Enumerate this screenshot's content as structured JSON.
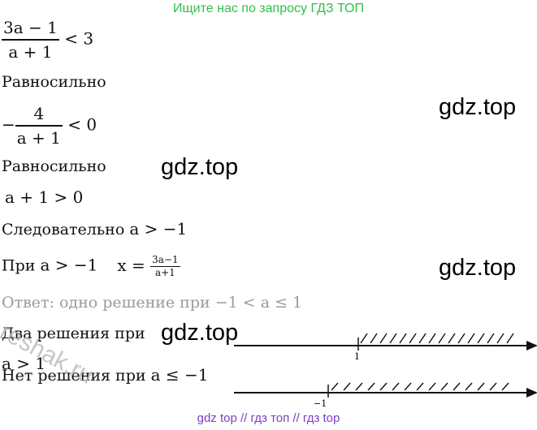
{
  "banner": "Ищите нас по запросу ГДЗ ТОП",
  "footer": "gdz top  //  гдз топ  //  гдз top",
  "watermark": "gdz.top",
  "side_watermark": "reshak.ru",
  "lines": {
    "l1_num": "3a − 1",
    "l1_den": "a + 1",
    "l1_rhs": " < 3",
    "equiv1": "Равносильно",
    "l2_minus": "−",
    "l2_num": "4",
    "l2_den": "a + 1",
    "l2_rhs": " < 0",
    "equiv2": "Равносильно",
    "l3": "a + 1 > 0",
    "l4_text": "Следовательно ",
    "l4_math": "a > −1",
    "l5_text": "При ",
    "l5_math": "a > −1",
    "l5_x": "x = ",
    "l5_num": "3a−1",
    "l5_den": "a+1",
    "answer": "Ответ: одно решение при −1 < a ≤ 1",
    "two_solutions": "Два решения при",
    "two_cond": "a > 1",
    "no_solutions": "Нет решения при ",
    "no_cond": "a ≤ −1"
  },
  "number_lines": [
    {
      "tick_label": "1",
      "tick_value": 1,
      "hatch_side": "right"
    },
    {
      "tick_label": "−1",
      "tick_value": -1,
      "hatch_side": "right"
    }
  ]
}
